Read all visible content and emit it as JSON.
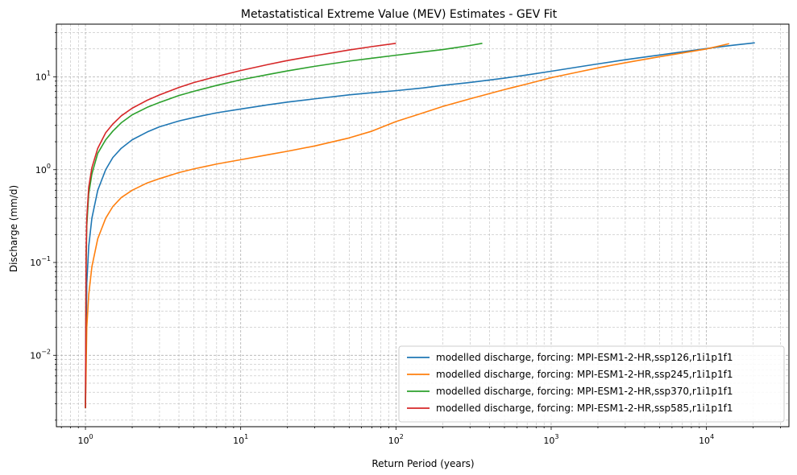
{
  "chart_data": {
    "type": "line",
    "title": "Metastatistical Extreme Value (MEV) Estimates - GEV Fit",
    "xlabel": "Return Period (years)",
    "ylabel": "Discharge (mm/d)",
    "xscale": "log",
    "yscale": "log",
    "xlim": [
      0.65,
      34000
    ],
    "ylim": [
      0.0017,
      37
    ],
    "grid": "on (major and minor, dashed)",
    "legend_position": "lower-right",
    "x_ticks": [
      {
        "value": 1,
        "base": "10",
        "exp": "0"
      },
      {
        "value": 10,
        "base": "10",
        "exp": "1"
      },
      {
        "value": 100,
        "base": "10",
        "exp": "2"
      },
      {
        "value": 1000,
        "base": "10",
        "exp": "3"
      },
      {
        "value": 10000,
        "base": "10",
        "exp": "4"
      }
    ],
    "y_ticks": [
      {
        "value": 0.01,
        "base": "10",
        "exp": "−2"
      },
      {
        "value": 0.1,
        "base": "10",
        "exp": "−1"
      },
      {
        "value": 1,
        "base": "10",
        "exp": "0"
      },
      {
        "value": 10,
        "base": "10",
        "exp": "1"
      }
    ],
    "series": [
      {
        "name": "modelled discharge, forcing: MPI-ESM1-2-HR,ssp126,r1i1p1f1",
        "color": "#1f77b4",
        "x": [
          1.0,
          1.02,
          1.05,
          1.1,
          1.2,
          1.35,
          1.5,
          1.7,
          2,
          2.5,
          3,
          4,
          5,
          7,
          10,
          15,
          20,
          30,
          50,
          70,
          100,
          150,
          200,
          300,
          500,
          700,
          1000,
          1500,
          2000,
          3000,
          5000,
          7000,
          10000,
          15000,
          20500
        ],
        "y": [
          0.0027,
          0.06,
          0.15,
          0.3,
          0.6,
          1.0,
          1.35,
          1.7,
          2.1,
          2.55,
          2.9,
          3.35,
          3.65,
          4.1,
          4.5,
          5.0,
          5.35,
          5.8,
          6.4,
          6.75,
          7.1,
          7.6,
          8.1,
          8.7,
          9.7,
          10.5,
          11.5,
          12.8,
          13.8,
          15.3,
          17.2,
          18.6,
          20.2,
          22.0,
          23.3
        ]
      },
      {
        "name": "modelled discharge, forcing: MPI-ESM1-2-HR,ssp245,r1i1p1f1",
        "color": "#ff7f0e",
        "x": [
          1.0,
          1.02,
          1.05,
          1.1,
          1.2,
          1.35,
          1.5,
          1.7,
          2,
          2.5,
          3,
          4,
          5,
          7,
          10,
          15,
          20,
          30,
          50,
          70,
          100,
          150,
          200,
          300,
          500,
          700,
          1000,
          1500,
          2000,
          3000,
          5000,
          7000,
          10000,
          14000
        ],
        "y": [
          0.0027,
          0.02,
          0.045,
          0.09,
          0.18,
          0.3,
          0.4,
          0.5,
          0.6,
          0.72,
          0.8,
          0.93,
          1.02,
          1.15,
          1.28,
          1.45,
          1.58,
          1.8,
          2.2,
          2.6,
          3.3,
          4.1,
          4.8,
          5.8,
          7.3,
          8.4,
          9.8,
          11.3,
          12.5,
          14.2,
          16.5,
          18.1,
          20.0,
          22.8
        ]
      },
      {
        "name": "modelled discharge, forcing: MPI-ESM1-2-HR,ssp370,r1i1p1f1",
        "color": "#2ca02c",
        "x": [
          1.0,
          1.01,
          1.02,
          1.05,
          1.1,
          1.2,
          1.35,
          1.5,
          1.7,
          2,
          2.5,
          3,
          4,
          5,
          7,
          10,
          15,
          20,
          30,
          50,
          70,
          100,
          150,
          200,
          250,
          300,
          360
        ],
        "y": [
          0.0027,
          0.1,
          0.25,
          0.55,
          0.9,
          1.5,
          2.1,
          2.6,
          3.2,
          3.9,
          4.7,
          5.3,
          6.3,
          7.0,
          8.1,
          9.3,
          10.6,
          11.6,
          13.0,
          14.8,
          15.9,
          17.1,
          18.6,
          19.7,
          20.8,
          21.8,
          23.0
        ]
      },
      {
        "name": "modelled discharge, forcing: MPI-ESM1-2-HR,ssp585,r1i1p1f1",
        "color": "#d62728",
        "x": [
          1.0,
          1.01,
          1.02,
          1.05,
          1.1,
          1.2,
          1.35,
          1.5,
          1.7,
          2,
          2.5,
          3,
          4,
          5,
          7,
          10,
          15,
          20,
          30,
          50,
          70,
          100
        ],
        "y": [
          0.0027,
          0.12,
          0.3,
          0.65,
          1.05,
          1.7,
          2.5,
          3.1,
          3.8,
          4.6,
          5.6,
          6.4,
          7.7,
          8.7,
          10.1,
          11.7,
          13.6,
          15.0,
          16.9,
          19.5,
          21.2,
          23.0
        ]
      }
    ]
  }
}
